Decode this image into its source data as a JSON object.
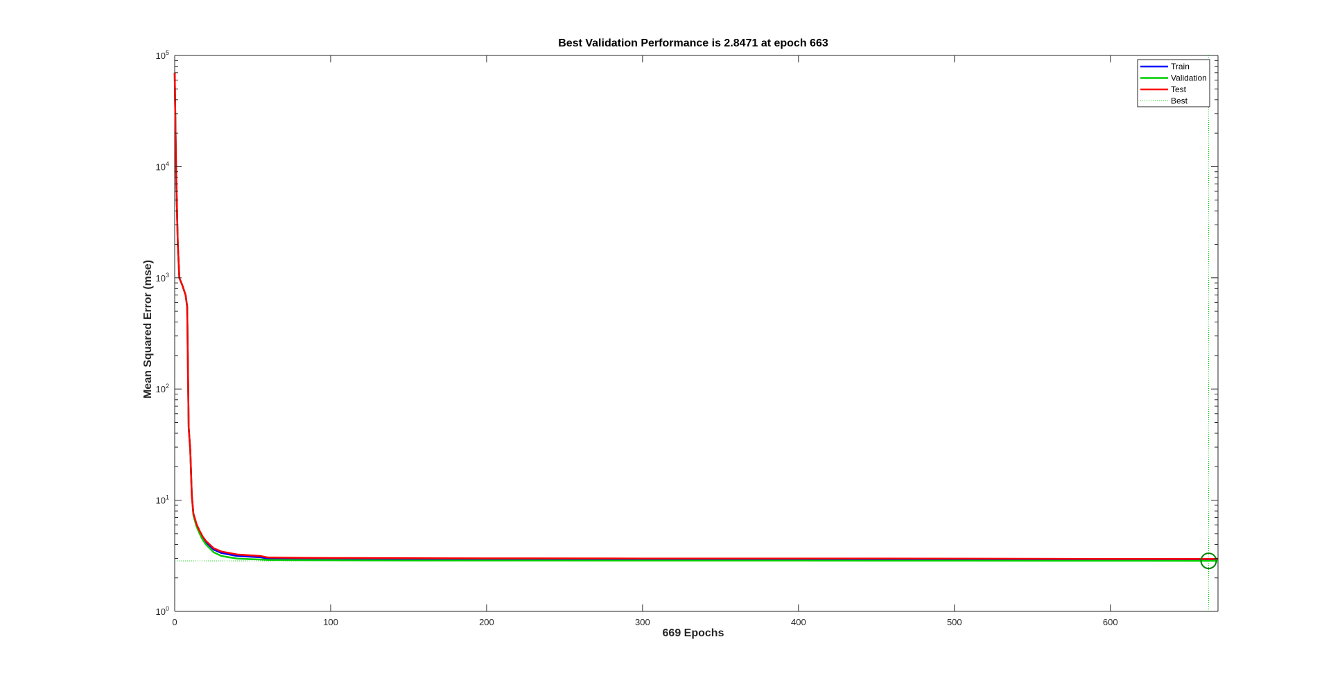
{
  "chart_data": {
    "type": "line",
    "title": "Best Validation Performance is 2.8471 at epoch 663",
    "xlabel": "669 Epochs",
    "ylabel": "Mean Squared Error  (mse)",
    "xlim": [
      0,
      669
    ],
    "ylim": [
      1,
      100000
    ],
    "yscale": "log",
    "x_ticks": [
      0,
      100,
      200,
      300,
      400,
      500,
      600
    ],
    "y_ticks": [
      {
        "value": 1,
        "base": "10",
        "exp": "0"
      },
      {
        "value": 10,
        "base": "10",
        "exp": "1"
      },
      {
        "value": 100,
        "base": "10",
        "exp": "2"
      },
      {
        "value": 1000,
        "base": "10",
        "exp": "3"
      },
      {
        "value": 10000,
        "base": "10",
        "exp": "4"
      },
      {
        "value": 100000,
        "base": "10",
        "exp": "5"
      }
    ],
    "grid": false,
    "legend_position": "top-right",
    "colors": {
      "train": "#0000ff",
      "validation": "#00cc00",
      "test": "#ff0000",
      "best": "#00cc00"
    },
    "series": [
      {
        "name": "Train",
        "style": "solid",
        "x": [
          0,
          1,
          2,
          3,
          5,
          7,
          8,
          9,
          10,
          11,
          12,
          14,
          16,
          18,
          20,
          25,
          30,
          40,
          55,
          60,
          80,
          100,
          150,
          200,
          300,
          400,
          500,
          600,
          669
        ],
        "y": [
          70000,
          8000,
          2000,
          1000,
          850,
          700,
          550,
          45,
          28,
          11,
          7.5,
          6,
          5.2,
          4.6,
          4.2,
          3.6,
          3.35,
          3.15,
          3.07,
          2.98,
          2.97,
          2.96,
          2.95,
          2.94,
          2.93,
          2.92,
          2.91,
          2.9,
          2.88
        ]
      },
      {
        "name": "Validation",
        "style": "solid",
        "x": [
          0,
          1,
          2,
          3,
          5,
          7,
          8,
          9,
          10,
          11,
          12,
          14,
          16,
          18,
          20,
          25,
          30,
          40,
          55,
          60,
          80,
          100,
          150,
          200,
          300,
          400,
          500,
          600,
          663,
          669
        ],
        "y": [
          70000,
          8000,
          2000,
          1000,
          850,
          700,
          550,
          45,
          28,
          11,
          7.3,
          5.8,
          5.0,
          4.4,
          4.0,
          3.4,
          3.15,
          2.98,
          2.93,
          2.9,
          2.89,
          2.88,
          2.87,
          2.87,
          2.86,
          2.86,
          2.855,
          2.85,
          2.8471,
          2.85
        ]
      },
      {
        "name": "Test",
        "style": "solid",
        "x": [
          0,
          1,
          2,
          3,
          5,
          7,
          8,
          9,
          10,
          11,
          12,
          14,
          16,
          18,
          20,
          25,
          30,
          40,
          55,
          60,
          80,
          100,
          150,
          200,
          300,
          400,
          500,
          600,
          669
        ],
        "y": [
          70000,
          8000,
          2000,
          1000,
          850,
          700,
          550,
          45,
          28,
          11,
          7.6,
          6.1,
          5.3,
          4.7,
          4.3,
          3.7,
          3.45,
          3.25,
          3.15,
          3.05,
          3.03,
          3.02,
          3.01,
          3.0,
          2.99,
          2.99,
          2.98,
          2.97,
          2.96
        ]
      },
      {
        "name": "Best",
        "style": "dotted"
      }
    ],
    "best": {
      "epoch": 663,
      "value": 2.8471
    }
  }
}
